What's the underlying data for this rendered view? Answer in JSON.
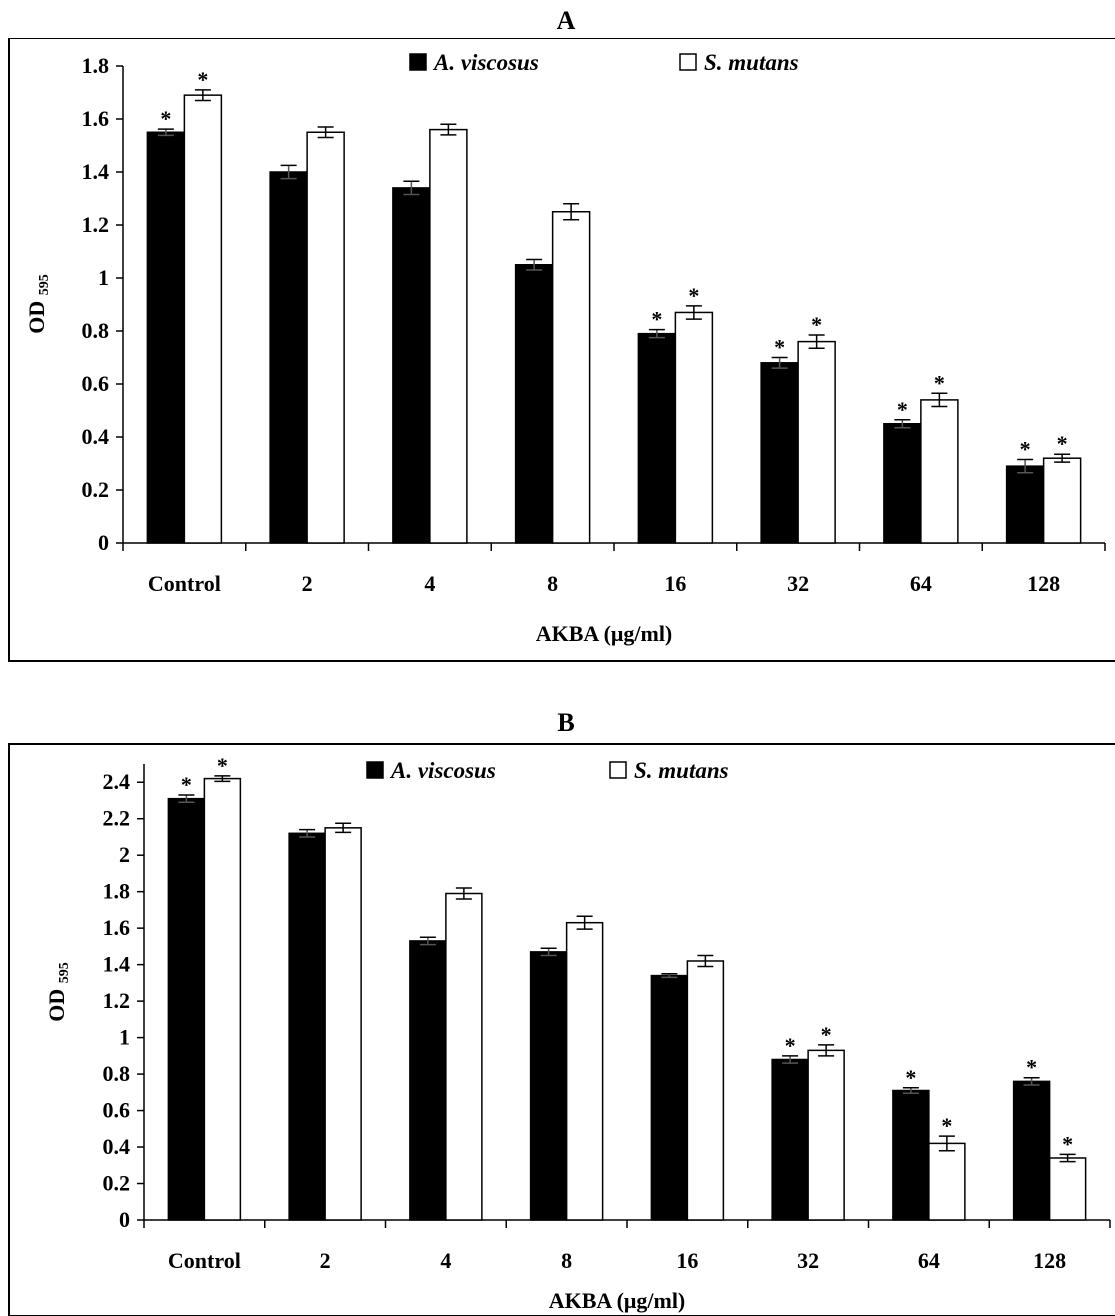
{
  "panels": [
    {
      "label": "A"
    },
    {
      "label": "B"
    }
  ],
  "chart_data": [
    {
      "type": "bar",
      "panel": "A",
      "categories": [
        "Control",
        "2",
        "4",
        "8",
        "16",
        "32",
        "64",
        "128"
      ],
      "xlabel": "AKBA (μg/ml)",
      "ylabel": "OD",
      "ylabel_sub": "595",
      "ylim": [
        0,
        1.8
      ],
      "yticks": [
        0,
        0.2,
        0.4,
        0.6,
        0.8,
        1,
        1.2,
        1.4,
        1.6,
        1.8
      ],
      "legend_position": "top-center",
      "series": [
        {
          "name": "A. viscosus",
          "color": "#000000",
          "values": [
            1.55,
            1.4,
            1.34,
            1.05,
            0.79,
            0.68,
            0.45,
            0.29
          ],
          "errors": [
            0.012,
            0.025,
            0.025,
            0.02,
            0.015,
            0.02,
            0.015,
            0.025
          ],
          "significant": [
            true,
            false,
            false,
            false,
            true,
            true,
            true,
            true
          ]
        },
        {
          "name": "S. mutans",
          "color": "#ffffff",
          "values": [
            1.69,
            1.55,
            1.56,
            1.25,
            0.87,
            0.76,
            0.54,
            0.32
          ],
          "errors": [
            0.02,
            0.02,
            0.02,
            0.03,
            0.025,
            0.025,
            0.025,
            0.015
          ],
          "significant": [
            true,
            false,
            false,
            false,
            true,
            true,
            true,
            true
          ]
        }
      ]
    },
    {
      "type": "bar",
      "panel": "B",
      "categories": [
        "Control",
        "2",
        "4",
        "8",
        "16",
        "32",
        "64",
        "128"
      ],
      "xlabel": "AKBA (μg/ml)",
      "ylabel": "OD",
      "ylabel_sub": "595",
      "ylim": [
        0,
        2.5
      ],
      "yticks": [
        0,
        0.2,
        0.4,
        0.6,
        0.8,
        1,
        1.2,
        1.4,
        1.6,
        1.8,
        2,
        2.2,
        2.4
      ],
      "legend_position": "top-center",
      "series": [
        {
          "name": "A. viscosus",
          "color": "#000000",
          "values": [
            2.31,
            2.12,
            1.53,
            1.47,
            1.34,
            0.88,
            0.71,
            0.76
          ],
          "errors": [
            0.02,
            0.02,
            0.02,
            0.02,
            0.01,
            0.02,
            0.015,
            0.02
          ],
          "significant": [
            true,
            false,
            false,
            false,
            false,
            true,
            true,
            true
          ]
        },
        {
          "name": "S. mutans",
          "color": "#ffffff",
          "values": [
            2.42,
            2.15,
            1.79,
            1.63,
            1.42,
            0.93,
            0.42,
            0.34
          ],
          "errors": [
            0.015,
            0.025,
            0.03,
            0.035,
            0.03,
            0.03,
            0.04,
            0.02
          ],
          "significant": [
            true,
            false,
            false,
            false,
            false,
            true,
            true,
            true
          ]
        }
      ]
    }
  ]
}
